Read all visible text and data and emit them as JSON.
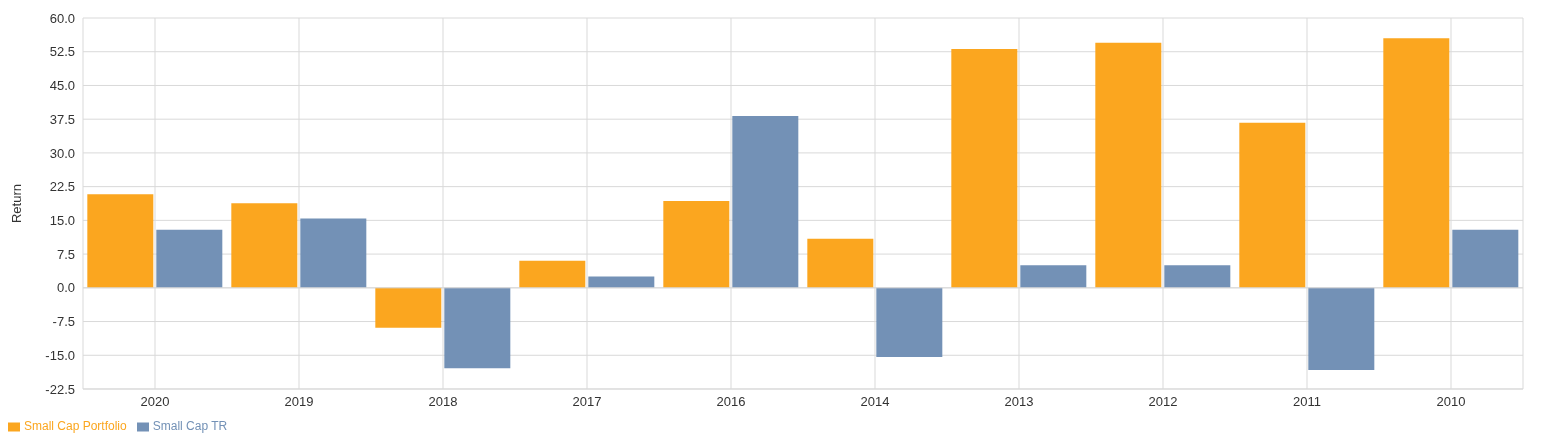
{
  "chart_data": {
    "type": "bar",
    "ylabel": "Return",
    "categories": [
      "2020",
      "2019",
      "2018",
      "2017",
      "2016",
      "2014",
      "2013",
      "2012",
      "2011",
      "2010"
    ],
    "series": [
      {
        "name": "Small Cap Portfolio",
        "color": "#fba61f",
        "values": [
          20.8,
          18.8,
          -8.9,
          6.0,
          19.3,
          10.9,
          53.1,
          54.5,
          36.7,
          55.5
        ]
      },
      {
        "name": "Small Cap TR",
        "color": "#7391b6",
        "values": [
          12.9,
          15.4,
          -17.9,
          2.5,
          38.2,
          -15.4,
          5.0,
          5.0,
          -18.3,
          12.9
        ]
      }
    ],
    "ylim": [
      -22.5,
      60
    ],
    "yticks": [
      {
        "value": -22.5,
        "label": "-22.5"
      },
      {
        "value": -15,
        "label": "-15.0"
      },
      {
        "value": -7.5,
        "label": "-7.5"
      },
      {
        "value": 0,
        "label": "0.0"
      },
      {
        "value": 7.5,
        "label": "7.5"
      },
      {
        "value": 15,
        "label": "15.0"
      },
      {
        "value": 22.5,
        "label": "22.5"
      },
      {
        "value": 30,
        "label": "30.0"
      },
      {
        "value": 37.5,
        "label": "37.5"
      },
      {
        "value": 45,
        "label": "45.0"
      },
      {
        "value": 52.5,
        "label": "52.5"
      },
      {
        "value": 60,
        "label": "60.0"
      }
    ],
    "grid": true,
    "legend": "bottom"
  }
}
